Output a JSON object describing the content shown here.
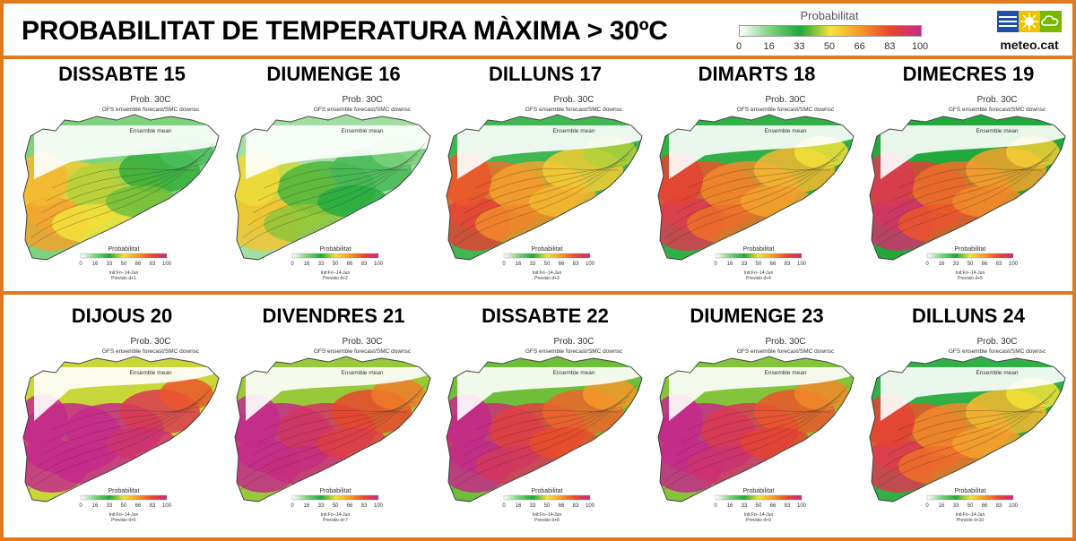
{
  "header": {
    "title": "PROBABILITAT DE TEMPERATURA MÀXIMA > 30ºC",
    "legend_title": "Probabilitat",
    "legend_ticks": [
      "0",
      "16",
      "33",
      "50",
      "66",
      "83",
      "100"
    ],
    "logo_text": "meteo.cat"
  },
  "colors": {
    "border": "#e07a1f",
    "scale": [
      "#ffffff",
      "#7dd37d",
      "#1fa83a",
      "#f2e23a",
      "#f59a2a",
      "#e8452a",
      "#c42a8a"
    ]
  },
  "map_labels": {
    "prob": "Prob. 30C",
    "source": "GFS ensemble forecast/SMC downsc",
    "mean": "Ensemble mean",
    "legend_title": "Probabilitat",
    "legend_ticks": [
      "0",
      "16",
      "33",
      "50",
      "66",
      "83",
      "100"
    ],
    "init": "Init:Fri--14-Jun"
  },
  "panels": [
    {
      "day": "DISSABTE  15",
      "previsio": "Previsio d+1",
      "level": 0.3
    },
    {
      "day": "DIUMENGE 16",
      "previsio": "Previsio d+2",
      "level": 0.22
    },
    {
      "day": "DILLUNS 17",
      "previsio": "Previsio d+3",
      "level": 0.5
    },
    {
      "day": "DIMARTS 18",
      "previsio": "Previsio d+4",
      "level": 0.55
    },
    {
      "day": "DIMECRES 19",
      "previsio": "Previsio d+5",
      "level": 0.6
    },
    {
      "day": "DIJOUS 20",
      "previsio": "Previsio d+6",
      "level": 0.85
    },
    {
      "day": "DIVENDRES 21",
      "previsio": "Previsio d+7",
      "level": 0.78
    },
    {
      "day": "DISSABTE  22",
      "previsio": "Previsio d+8",
      "level": 0.72
    },
    {
      "day": "DIUMENGE 23",
      "previsio": "Previsio d+9",
      "level": 0.75
    },
    {
      "day": "DILLUNS 24",
      "previsio": "Previsio d+10",
      "level": 0.55
    }
  ]
}
